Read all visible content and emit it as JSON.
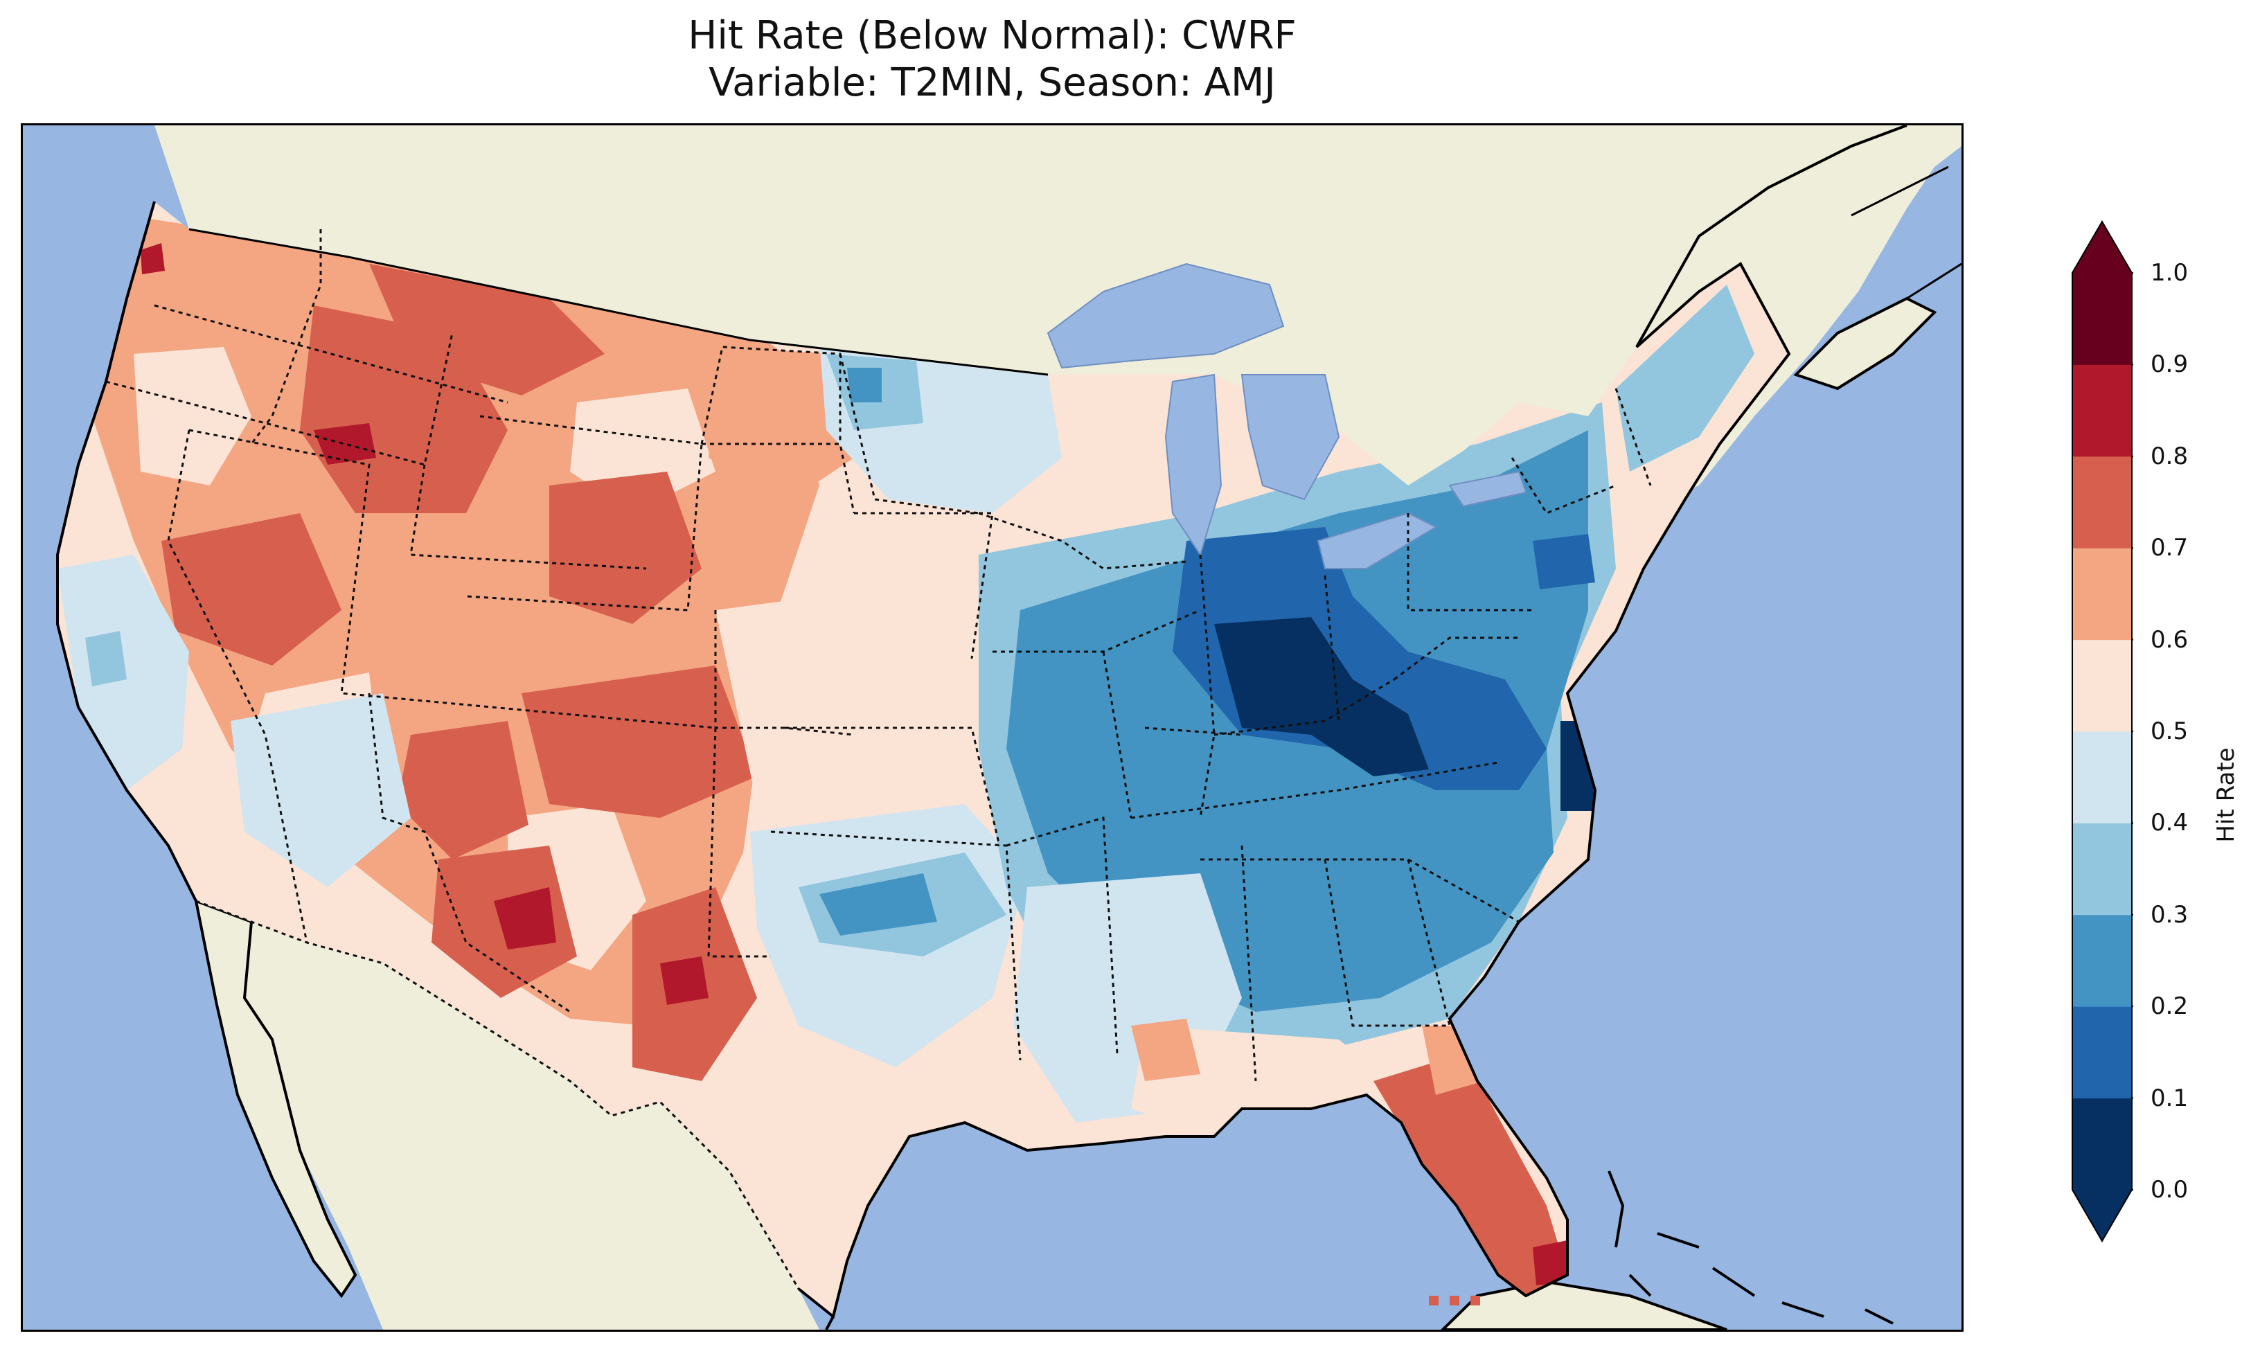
{
  "title": {
    "line1": "Hit Rate (Below Normal): CWRF",
    "line2": "Variable: T2MIN, Season: AMJ"
  },
  "colors": {
    "ocean": "#97b6e1",
    "land": "#efeedb",
    "lakes": "#97b6e1"
  },
  "colorbar": {
    "label": "Hit Rate",
    "ticks": [
      "0.0",
      "0.1",
      "0.2",
      "0.3",
      "0.4",
      "0.5",
      "0.6",
      "0.7",
      "0.8",
      "0.9",
      "1.0"
    ],
    "bins": [
      {
        "range": [
          0.0,
          0.1
        ],
        "color": "#053061"
      },
      {
        "range": [
          0.1,
          0.2
        ],
        "color": "#2166ac"
      },
      {
        "range": [
          0.2,
          0.3
        ],
        "color": "#4393c3"
      },
      {
        "range": [
          0.3,
          0.4
        ],
        "color": "#92c5de"
      },
      {
        "range": [
          0.4,
          0.5
        ],
        "color": "#d1e5f0"
      },
      {
        "range": [
          0.5,
          0.6
        ],
        "color": "#fbe3d6"
      },
      {
        "range": [
          0.6,
          0.7
        ],
        "color": "#f4a582"
      },
      {
        "range": [
          0.7,
          0.8
        ],
        "color": "#d6604d"
      },
      {
        "range": [
          0.8,
          0.9
        ],
        "color": "#b2182b"
      },
      {
        "range": [
          0.9,
          1.0
        ],
        "color": "#67001f"
      }
    ],
    "extend": "both"
  }
}
